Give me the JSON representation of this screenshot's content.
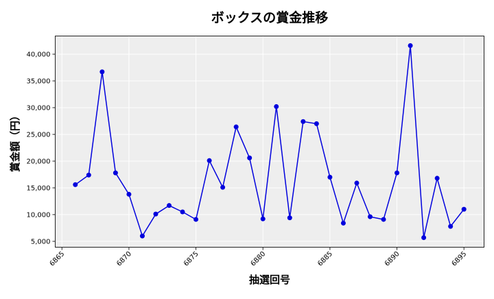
{
  "chart_data": {
    "type": "line",
    "title": "ボックスの賞金推移",
    "xlabel": "抽選回号",
    "ylabel": "賞金額（円）",
    "x": [
      6866,
      6867,
      6868,
      6869,
      6870,
      6871,
      6872,
      6873,
      6874,
      6875,
      6876,
      6877,
      6878,
      6879,
      6880,
      6881,
      6882,
      6883,
      6884,
      6885,
      6886,
      6887,
      6888,
      6889,
      6890,
      6891,
      6892,
      6893,
      6894,
      6895
    ],
    "series": [
      {
        "name": "ボックス",
        "color": "#0000dd",
        "marker": "circle",
        "values": [
          15600,
          17400,
          36700,
          17800,
          13800,
          6000,
          10100,
          11700,
          10500,
          9100,
          20100,
          15100,
          26400,
          20600,
          9200,
          30200,
          9400,
          27400,
          27000,
          17000,
          8400,
          15900,
          9600,
          9100,
          17800,
          41600,
          5700,
          16800,
          7800,
          11000
        ]
      }
    ],
    "xlim": [
      6864.5,
      6896.5
    ],
    "ylim": [
      3900,
      43400
    ],
    "xticks": [
      6865,
      6870,
      6875,
      6880,
      6885,
      6890,
      6895
    ],
    "xtick_labels": [
      "6865",
      "6870",
      "6875",
      "6880",
      "6885",
      "6890",
      "6895"
    ],
    "yticks": [
      5000,
      10000,
      15000,
      20000,
      25000,
      30000,
      35000,
      40000
    ],
    "ytick_labels": [
      "5,000",
      "10,000",
      "15,000",
      "20,000",
      "25,000",
      "30,000",
      "35,000",
      "40,000"
    ],
    "grid": true,
    "legend": null,
    "plot_background": "#eeeeee"
  }
}
